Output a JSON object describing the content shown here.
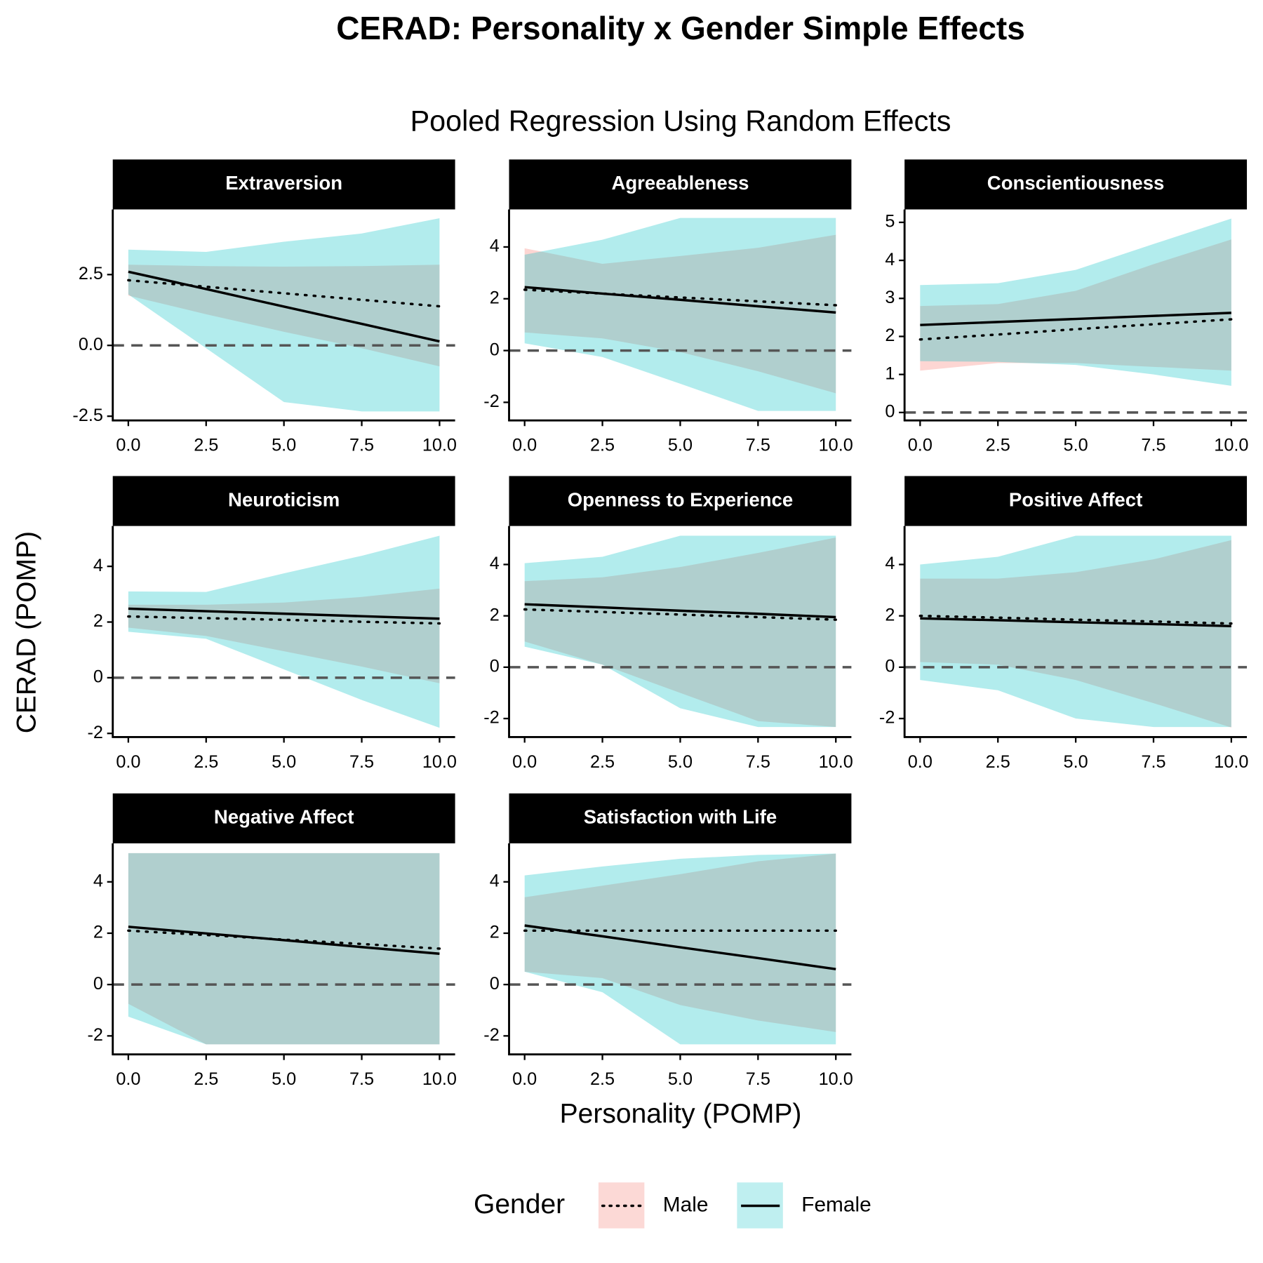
{
  "title": "CERAD: Personality x Gender Simple Effects",
  "subtitle": "Pooled Regression Using Random Effects",
  "x_label": "Personality (POMP)",
  "y_label": "CERAD (POMP)",
  "legend_title": "Gender",
  "chart_data": [
    {
      "type": "line",
      "title": "Extraversion",
      "x": [
        0,
        2.5,
        5,
        7.5,
        10
      ],
      "series": [
        {
          "name": "Male",
          "color": "#f8766d",
          "dash": "dotted",
          "values": [
            2.3,
            2.07,
            1.84,
            1.61,
            1.38
          ],
          "lower": [
            1.76,
            1.1,
            0.48,
            -0.1,
            -0.74
          ],
          "upper": [
            2.85,
            2.8,
            2.78,
            2.8,
            2.85
          ]
        },
        {
          "name": "Female",
          "color": "#00bfc4",
          "dash": "solid",
          "values": [
            2.6,
            1.99,
            1.37,
            0.76,
            0.14
          ],
          "lower": [
            1.8,
            -0.1,
            -2.0,
            -2.33,
            -2.33
          ],
          "upper": [
            3.38,
            3.3,
            3.66,
            3.95,
            4.49
          ]
        }
      ],
      "xlim": [
        -0.5,
        10.5
      ],
      "ylim": [
        -2.65,
        4.8
      ],
      "hline": 0,
      "xticks": [
        {
          "value": 0,
          "label": "0.0"
        },
        {
          "value": 2.5,
          "label": "2.5"
        },
        {
          "value": 5,
          "label": "5.0"
        },
        {
          "value": 7.5,
          "label": "7.5"
        },
        {
          "value": 10,
          "label": "10.0"
        }
      ],
      "yticks": [
        {
          "value": -2.5,
          "label": "-2.5"
        },
        {
          "value": 0,
          "label": "0.0"
        },
        {
          "value": 2.5,
          "label": "2.5"
        }
      ]
    },
    {
      "type": "line",
      "title": "Agreeableness",
      "x": [
        0,
        2.5,
        5,
        7.5,
        10
      ],
      "series": [
        {
          "name": "Male",
          "color": "#f8766d",
          "dash": "dotted",
          "values": [
            2.35,
            2.2,
            2.05,
            1.9,
            1.75
          ],
          "lower": [
            0.7,
            0.47,
            -0.06,
            -0.8,
            -1.65
          ],
          "upper": [
            3.95,
            3.35,
            3.65,
            3.97,
            4.47
          ]
        },
        {
          "name": "Female",
          "color": "#00bfc4",
          "dash": "solid",
          "values": [
            2.45,
            2.2,
            1.96,
            1.71,
            1.47
          ],
          "lower": [
            0.28,
            -0.25,
            -1.28,
            -2.33,
            -2.33
          ],
          "upper": [
            3.7,
            4.28,
            5.12,
            5.12,
            5.12
          ]
        }
      ],
      "xlim": [
        -0.5,
        10.5
      ],
      "ylim": [
        -2.7,
        5.45
      ],
      "hline": 0,
      "xticks": [
        {
          "value": 0,
          "label": "0.0"
        },
        {
          "value": 2.5,
          "label": "2.5"
        },
        {
          "value": 5,
          "label": "5.0"
        },
        {
          "value": 7.5,
          "label": "7.5"
        },
        {
          "value": 10,
          "label": "10.0"
        }
      ],
      "yticks": [
        -2,
        0,
        2,
        4
      ]
    },
    {
      "type": "line",
      "title": "Conscientiousness",
      "x": [
        0,
        2.5,
        5,
        7.5,
        10
      ],
      "series": [
        {
          "name": "Male",
          "color": "#f8766d",
          "dash": "dotted",
          "values": [
            1.92,
            2.05,
            2.19,
            2.32,
            2.45
          ],
          "lower": [
            1.1,
            1.3,
            1.3,
            1.2,
            1.1
          ],
          "upper": [
            2.8,
            2.85,
            3.2,
            3.9,
            4.55
          ]
        },
        {
          "name": "Female",
          "color": "#00bfc4",
          "dash": "solid",
          "values": [
            2.3,
            2.38,
            2.46,
            2.54,
            2.62
          ],
          "lower": [
            1.35,
            1.33,
            1.25,
            1.0,
            0.7
          ],
          "upper": [
            3.35,
            3.4,
            3.75,
            4.43,
            5.1
          ]
        }
      ],
      "xlim": [
        -0.5,
        10.5
      ],
      "ylim": [
        -0.21,
        5.34
      ],
      "hline": 0,
      "xticks": [
        {
          "value": 0,
          "label": "0.0"
        },
        {
          "value": 2.5,
          "label": "2.5"
        },
        {
          "value": 5,
          "label": "5.0"
        },
        {
          "value": 7.5,
          "label": "7.5"
        },
        {
          "value": 10,
          "label": "10.0"
        }
      ],
      "yticks": [
        0,
        1,
        2,
        3,
        4,
        5
      ]
    },
    {
      "type": "line",
      "title": "Neuroticism",
      "x": [
        0,
        2.5,
        5,
        7.5,
        10
      ],
      "series": [
        {
          "name": "Male",
          "color": "#f8766d",
          "dash": "dotted",
          "values": [
            2.2,
            2.14,
            2.08,
            2.01,
            1.95
          ],
          "lower": [
            1.8,
            1.5,
            0.95,
            0.4,
            -0.2
          ],
          "upper": [
            2.62,
            2.62,
            2.7,
            2.9,
            3.2
          ]
        },
        {
          "name": "Female",
          "color": "#00bfc4",
          "dash": "solid",
          "values": [
            2.48,
            2.39,
            2.3,
            2.21,
            2.12
          ],
          "lower": [
            1.65,
            1.4,
            0.3,
            -0.8,
            -1.8
          ],
          "upper": [
            3.1,
            3.08,
            3.75,
            4.38,
            5.1
          ]
        }
      ],
      "xlim": [
        -0.5,
        10.5
      ],
      "ylim": [
        -2.13,
        5.45
      ],
      "hline": 0,
      "xticks": [
        {
          "value": 0,
          "label": "0.0"
        },
        {
          "value": 2.5,
          "label": "2.5"
        },
        {
          "value": 5,
          "label": "5.0"
        },
        {
          "value": 7.5,
          "label": "7.5"
        },
        {
          "value": 10,
          "label": "10.0"
        }
      ],
      "yticks": [
        -2,
        0,
        2,
        4
      ]
    },
    {
      "type": "line",
      "title": "Openness to Experience",
      "x": [
        0,
        2.5,
        5,
        7.5,
        10
      ],
      "series": [
        {
          "name": "Male",
          "color": "#f8766d",
          "dash": "dotted",
          "values": [
            2.25,
            2.15,
            2.05,
            1.95,
            1.85
          ],
          "lower": [
            1.0,
            0.1,
            -1.0,
            -2.1,
            -2.33
          ],
          "upper": [
            3.35,
            3.5,
            3.9,
            4.45,
            5.05
          ]
        },
        {
          "name": "Female",
          "color": "#00bfc4",
          "dash": "solid",
          "values": [
            2.45,
            2.33,
            2.2,
            2.08,
            1.95
          ],
          "lower": [
            0.8,
            0.1,
            -1.6,
            -2.33,
            -2.33
          ],
          "upper": [
            4.05,
            4.3,
            5.12,
            5.12,
            5.12
          ]
        }
      ],
      "xlim": [
        -0.5,
        10.5
      ],
      "ylim": [
        -2.72,
        5.5
      ],
      "hline": 0,
      "xticks": [
        {
          "value": 0,
          "label": "0.0"
        },
        {
          "value": 2.5,
          "label": "2.5"
        },
        {
          "value": 5,
          "label": "5.0"
        },
        {
          "value": 7.5,
          "label": "7.5"
        },
        {
          "value": 10,
          "label": "10.0"
        }
      ],
      "yticks": [
        -2,
        0,
        2,
        4
      ]
    },
    {
      "type": "line",
      "title": "Positive Affect",
      "x": [
        0,
        2.5,
        5,
        7.5,
        10
      ],
      "series": [
        {
          "name": "Male",
          "color": "#f8766d",
          "dash": "dotted",
          "values": [
            2.0,
            1.93,
            1.85,
            1.78,
            1.7
          ],
          "lower": [
            0.2,
            0.1,
            -0.5,
            -1.4,
            -2.35
          ],
          "upper": [
            3.45,
            3.45,
            3.7,
            4.2,
            4.95
          ]
        },
        {
          "name": "Female",
          "color": "#00bfc4",
          "dash": "solid",
          "values": [
            1.9,
            1.83,
            1.75,
            1.68,
            1.6
          ],
          "lower": [
            -0.5,
            -0.9,
            -2.0,
            -2.33,
            -2.33
          ],
          "upper": [
            4.0,
            4.3,
            5.12,
            5.12,
            5.12
          ]
        }
      ],
      "xlim": [
        -0.5,
        10.5
      ],
      "ylim": [
        -2.72,
        5.5
      ],
      "hline": 0,
      "xticks": [
        {
          "value": 0,
          "label": "0.0"
        },
        {
          "value": 2.5,
          "label": "2.5"
        },
        {
          "value": 5,
          "label": "5.0"
        },
        {
          "value": 7.5,
          "label": "7.5"
        },
        {
          "value": 10,
          "label": "10.0"
        }
      ],
      "yticks": [
        -2,
        0,
        2,
        4
      ]
    },
    {
      "type": "line",
      "title": "Negative Affect",
      "x": [
        0,
        2.5,
        5,
        7.5,
        10
      ],
      "series": [
        {
          "name": "Male",
          "color": "#f8766d",
          "dash": "dotted",
          "values": [
            2.1,
            1.93,
            1.75,
            1.58,
            1.4
          ],
          "lower": [
            -0.75,
            -2.33,
            -2.33,
            -2.33,
            -2.33
          ],
          "upper": [
            5.12,
            5.12,
            5.12,
            5.12,
            5.12
          ]
        },
        {
          "name": "Female",
          "color": "#00bfc4",
          "dash": "solid",
          "values": [
            2.25,
            1.99,
            1.73,
            1.46,
            1.2
          ],
          "lower": [
            -1.25,
            -2.33,
            -2.33,
            -2.33,
            -2.33
          ],
          "upper": [
            5.12,
            5.12,
            5.12,
            5.12,
            5.12
          ]
        }
      ],
      "xlim": [
        -0.5,
        10.5
      ],
      "ylim": [
        -2.72,
        5.5
      ],
      "hline": 0,
      "xticks": [
        {
          "value": 0,
          "label": "0.0"
        },
        {
          "value": 2.5,
          "label": "2.5"
        },
        {
          "value": 5,
          "label": "5.0"
        },
        {
          "value": 7.5,
          "label": "7.5"
        },
        {
          "value": 10,
          "label": "10.0"
        }
      ],
      "yticks": [
        -2,
        0,
        2,
        4
      ]
    },
    {
      "type": "line",
      "title": "Satisfaction with Life",
      "x": [
        0,
        2.5,
        5,
        7.5,
        10
      ],
      "series": [
        {
          "name": "Male",
          "color": "#f8766d",
          "dash": "dotted",
          "values": [
            2.1,
            2.1,
            2.1,
            2.1,
            2.1
          ],
          "lower": [
            0.5,
            0.25,
            -0.8,
            -1.4,
            -1.85
          ],
          "upper": [
            3.4,
            3.85,
            4.3,
            4.8,
            5.1
          ]
        },
        {
          "name": "Female",
          "color": "#00bfc4",
          "dash": "solid",
          "values": [
            2.3,
            1.88,
            1.45,
            1.03,
            0.6
          ],
          "lower": [
            0.5,
            -0.3,
            -2.33,
            -2.33,
            -2.33
          ],
          "upper": [
            4.25,
            4.6,
            4.9,
            5.05,
            5.1
          ]
        }
      ],
      "xlim": [
        -0.5,
        10.5
      ],
      "ylim": [
        -2.72,
        5.5
      ],
      "hline": 0,
      "xticks": [
        {
          "value": 0,
          "label": "0.0"
        },
        {
          "value": 2.5,
          "label": "2.5"
        },
        {
          "value": 5,
          "label": "5.0"
        },
        {
          "value": 7.5,
          "label": "7.5"
        },
        {
          "value": 10,
          "label": "10.0"
        }
      ],
      "yticks": [
        -2,
        0,
        2,
        4
      ]
    }
  ]
}
